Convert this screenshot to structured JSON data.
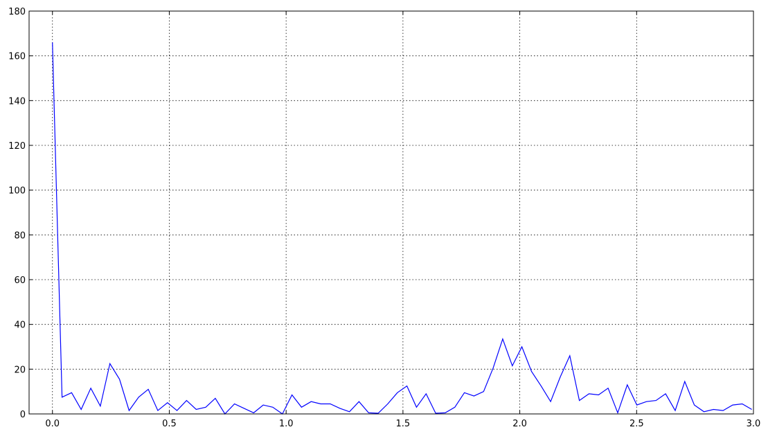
{
  "chart_data": {
    "type": "line",
    "title": "",
    "xlabel": "",
    "ylabel": "",
    "xlim": [
      -0.1,
      3.0
    ],
    "ylim": [
      0,
      180
    ],
    "xticks": [
      0.0,
      0.5,
      1.0,
      1.5,
      2.0,
      2.5,
      3.0
    ],
    "xtick_labels": [
      "0.0",
      "0.5",
      "1.0",
      "1.5",
      "2.0",
      "2.5",
      "3.0"
    ],
    "yticks": [
      0,
      20,
      40,
      60,
      80,
      100,
      120,
      140,
      160,
      180
    ],
    "ytick_labels": [
      "0",
      "20",
      "40",
      "60",
      "80",
      "100",
      "120",
      "140",
      "160",
      "180"
    ],
    "grid": true,
    "line_color": "#0000ff",
    "series": [
      {
        "x": [
          0.0,
          0.041,
          0.082,
          0.123,
          0.164,
          0.205,
          0.246,
          0.287,
          0.328,
          0.369,
          0.41,
          0.451,
          0.492,
          0.533,
          0.574,
          0.615,
          0.656,
          0.697,
          0.738,
          0.779,
          0.82,
          0.861,
          0.902,
          0.943,
          0.984,
          1.025,
          1.066,
          1.107,
          1.148,
          1.189,
          1.23,
          1.271,
          1.312,
          1.353,
          1.394,
          1.435,
          1.476,
          1.517,
          1.558,
          1.599,
          1.64,
          1.681,
          1.722,
          1.763,
          1.804,
          1.845,
          1.886,
          1.927,
          1.968,
          2.009,
          2.05,
          2.091,
          2.132,
          2.173,
          2.214,
          2.255,
          2.296,
          2.337,
          2.378,
          2.419,
          2.46,
          2.501,
          2.542,
          2.583,
          2.624,
          2.665,
          2.706,
          2.747,
          2.788,
          2.829,
          2.87,
          2.911,
          2.952,
          2.993
        ],
        "y": [
          166,
          7.5,
          9.5,
          2,
          11.5,
          3.5,
          22.5,
          15.5,
          1.5,
          7.5,
          11,
          1.5,
          5,
          1.5,
          6,
          2,
          3,
          7,
          0,
          4.5,
          2.5,
          0.5,
          4,
          3,
          0,
          8.5,
          3,
          5.5,
          4.5,
          4.5,
          2.5,
          1,
          5.5,
          0.5,
          0.3,
          4.5,
          9.5,
          12.5,
          3,
          9,
          0.3,
          0.5,
          3,
          9.5,
          8,
          10,
          20.5,
          33.5,
          21.5,
          30,
          19,
          12.5,
          5.5,
          16.5,
          26,
          6,
          9,
          8.5,
          11.5,
          0.5,
          13,
          4,
          5.5,
          6,
          9,
          1.5,
          14.5,
          4,
          1,
          2,
          1.5,
          4,
          4.5,
          2
        ]
      }
    ]
  }
}
